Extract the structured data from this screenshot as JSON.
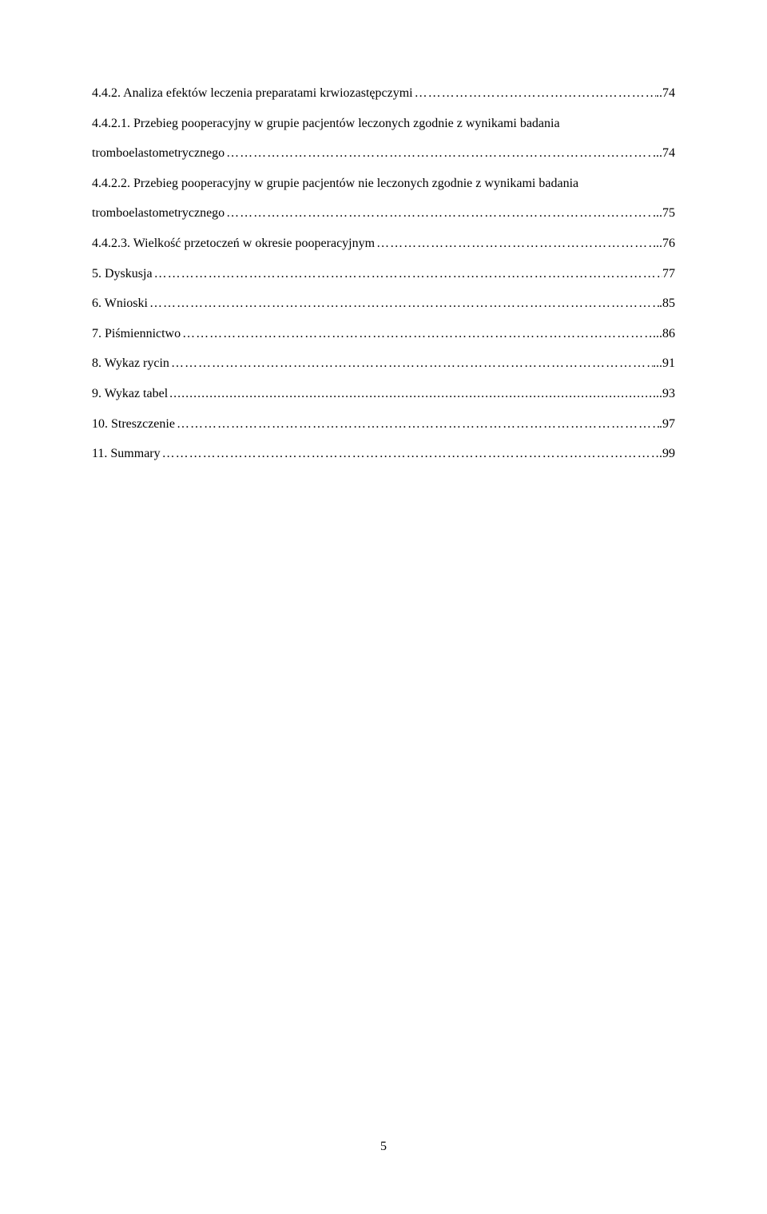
{
  "document": {
    "page_number": "5",
    "font_family": "Times New Roman",
    "font_size_pt": 12,
    "text_color": "#000000",
    "background_color": "#ffffff",
    "line_height": 2.35
  },
  "toc": {
    "items": [
      {
        "label": "4.4.2. Analiza efektów leczenia preparatami krwiozastępczymi",
        "page": "..74"
      },
      {
        "label": "4.4.2.1. Przebieg pooperacyjny w grupie pacjentów leczonych zgodnie z wynikami badania",
        "page": ""
      },
      {
        "label": "tromboelastometrycznego",
        "page": "...74"
      },
      {
        "label": "4.4.2.2. Przebieg pooperacyjny w grupie pacjentów nie leczonych zgodnie z wynikami badania",
        "page": ""
      },
      {
        "label": "tromboelastometrycznego",
        "page": "...75"
      },
      {
        "label": "4.4.2.3. Wielkość przetoczeń w okresie pooperacyjnym",
        "page": "..76"
      },
      {
        "label": "5. Dyskusja",
        "page": "77"
      },
      {
        "label": "6. Wnioski",
        "page": ".85"
      },
      {
        "label": "7. Piśmiennictwo",
        "page": "...86"
      },
      {
        "label": "8. Wykaz rycin",
        "page": "...91"
      },
      {
        "label": "9. Wykaz tabel",
        "page": "...93",
        "dots_style": "periods"
      },
      {
        "label": "10. Streszczenie",
        "page": ".97"
      },
      {
        "label": "11. Summary",
        "page": ".99"
      }
    ]
  }
}
